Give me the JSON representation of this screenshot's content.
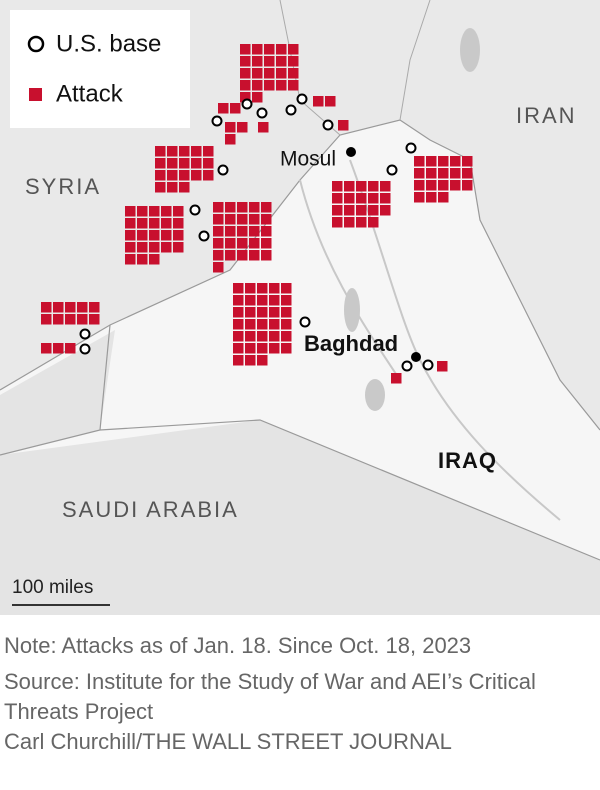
{
  "legend": {
    "base": "U.S. base",
    "attack": "Attack"
  },
  "places": {
    "syria": "SYRIA",
    "iran": "IRAN",
    "iraq": "IRAQ",
    "saudi_arabia": "SAUDI ARABIA",
    "mosul": "Mosul",
    "baghdad": "Baghdad"
  },
  "scale": "100 miles",
  "attacks": [
    {
      "count": 22
    },
    {
      "count": 2
    },
    {
      "count": 3
    },
    {
      "count": 1
    },
    {
      "count": 2
    },
    {
      "count": 1
    },
    {
      "count": 18
    },
    {
      "count": 23
    },
    {
      "count": 26
    },
    {
      "count": 19
    },
    {
      "count": 18
    },
    {
      "count": 10
    },
    {
      "count": 3
    },
    {
      "count": 33
    },
    {
      "count": 1
    },
    {
      "count": 1
    }
  ],
  "note": "Note: Attacks as of Jan. 18. Since Oct. 18, 2023",
  "source": "Source: Institute for the Study of War and AEI’s Critical Threats Project",
  "credit": "Carl Churchill/THE WALL STREET JOURNAL"
}
